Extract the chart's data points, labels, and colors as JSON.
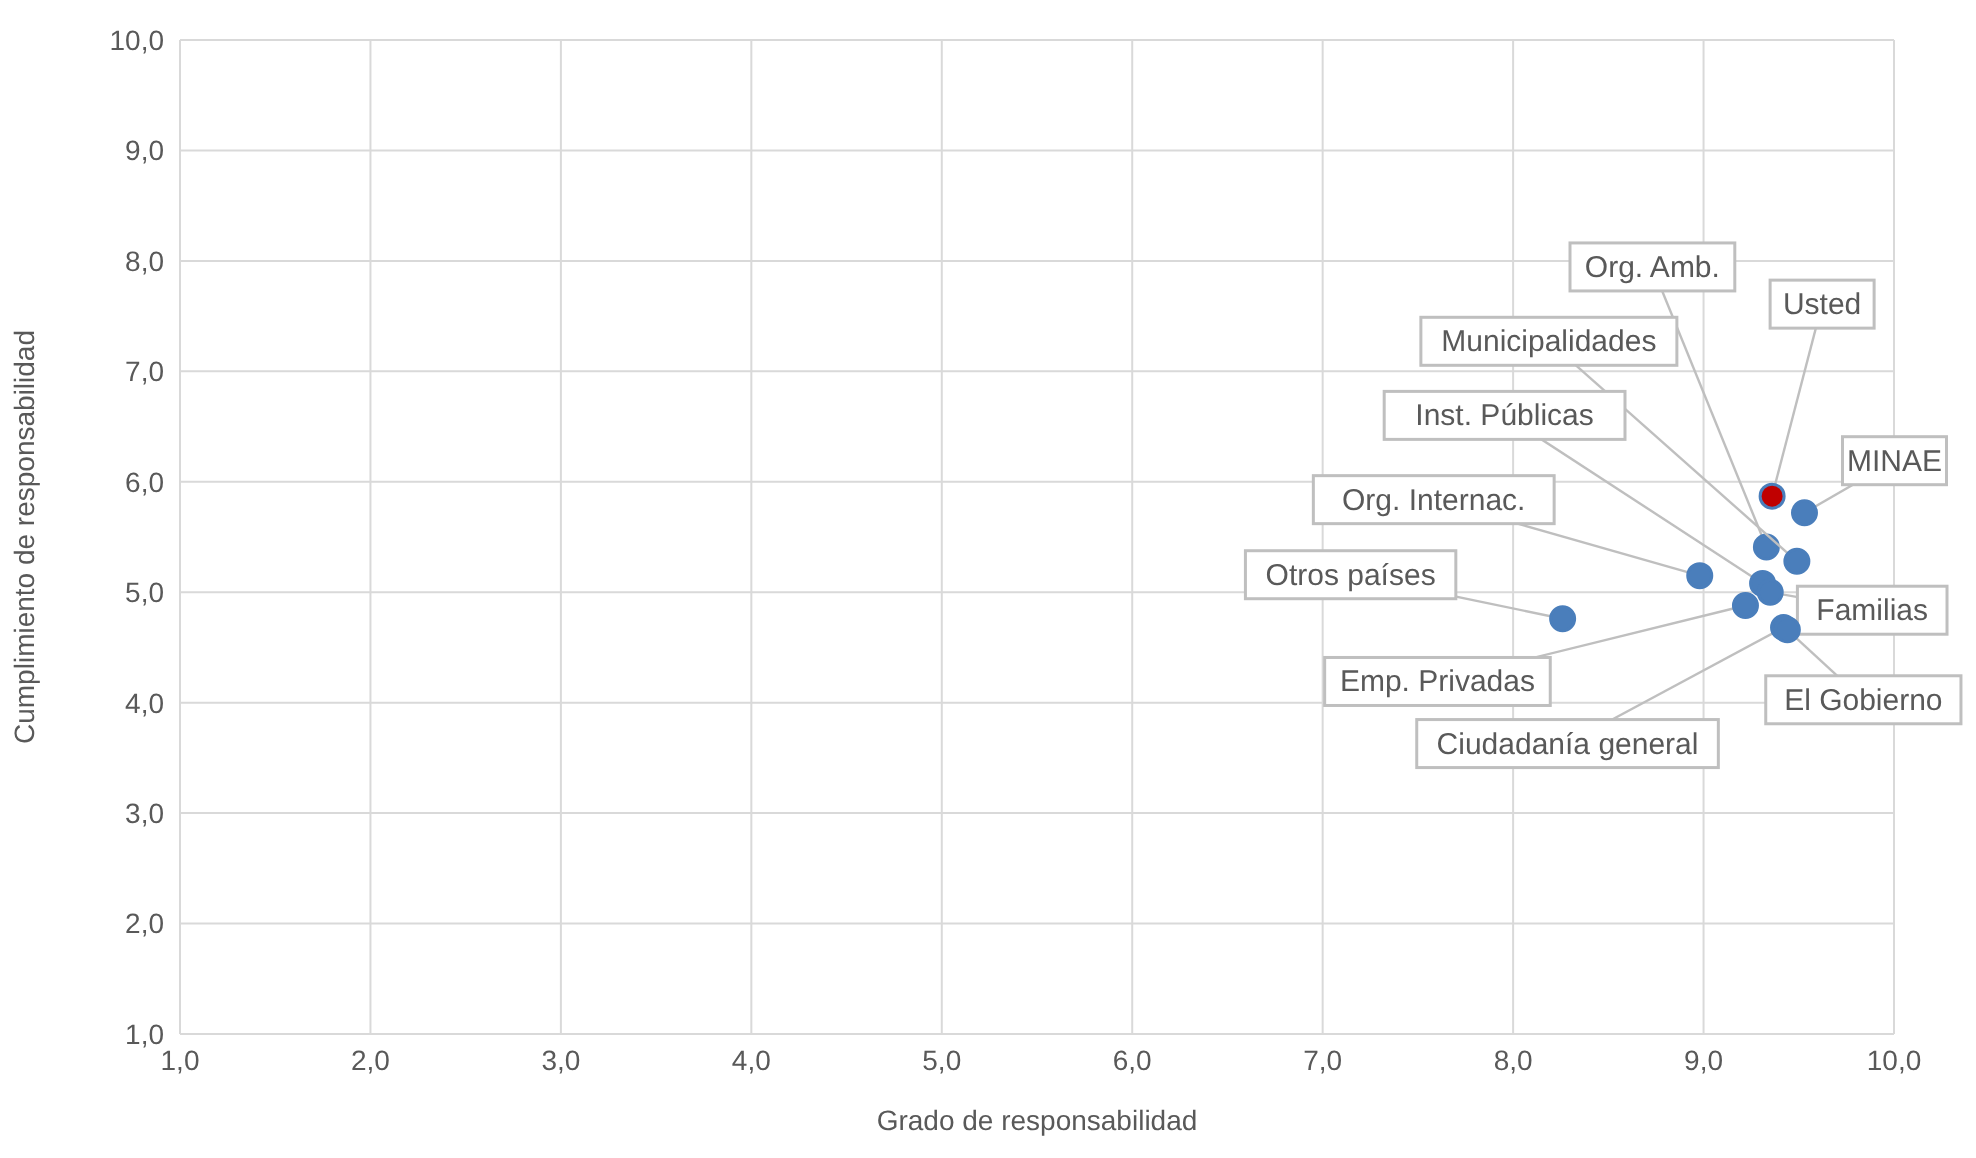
{
  "chart_data": {
    "type": "scatter",
    "xlabel": "Grado de responsabilidad",
    "ylabel": "Cumplimiento de responsabilidad",
    "xlim": [
      1,
      10
    ],
    "ylim": [
      1,
      10
    ],
    "xticks": [
      {
        "value": 1,
        "label": "1,0"
      },
      {
        "value": 2,
        "label": "2,0"
      },
      {
        "value": 3,
        "label": "3,0"
      },
      {
        "value": 4,
        "label": "4,0"
      },
      {
        "value": 5,
        "label": "5,0"
      },
      {
        "value": 6,
        "label": "6,0"
      },
      {
        "value": 7,
        "label": "7,0"
      },
      {
        "value": 8,
        "label": "8,0"
      },
      {
        "value": 9,
        "label": "9,0"
      },
      {
        "value": 10,
        "label": "10,0"
      }
    ],
    "yticks": [
      {
        "value": 1,
        "label": "1,0"
      },
      {
        "value": 2,
        "label": "2,0"
      },
      {
        "value": 3,
        "label": "3,0"
      },
      {
        "value": 4,
        "label": "4,0"
      },
      {
        "value": 5,
        "label": "5,0"
      },
      {
        "value": 6,
        "label": "6,0"
      },
      {
        "value": 7,
        "label": "7,0"
      },
      {
        "value": 8,
        "label": "8,0"
      },
      {
        "value": 9,
        "label": "9,0"
      },
      {
        "value": 10,
        "label": "10,0"
      }
    ],
    "grid": true,
    "marker": "circle",
    "series": [
      {
        "name": "Org. Amb.",
        "color": "#4a7ebb",
        "x": [
          9.33
        ],
        "values": [
          5.41
        ]
      },
      {
        "name": "Usted",
        "color": "#c00000",
        "x": [
          9.36
        ],
        "values": [
          5.87
        ]
      },
      {
        "name": "Municipalidades",
        "color": "#4a7ebb",
        "x": [
          9.49
        ],
        "values": [
          5.28
        ]
      },
      {
        "name": "MINAE",
        "color": "#4a7ebb",
        "x": [
          9.53
        ],
        "values": [
          5.72
        ]
      },
      {
        "name": "Inst. Públicas",
        "color": "#4a7ebb",
        "x": [
          9.31
        ],
        "values": [
          5.08
        ]
      },
      {
        "name": "Org. Internac.",
        "color": "#4a7ebb",
        "x": [
          8.98
        ],
        "values": [
          5.15
        ]
      },
      {
        "name": "Otros países",
        "color": "#4a7ebb",
        "x": [
          8.26
        ],
        "values": [
          4.76
        ]
      },
      {
        "name": "Familias",
        "color": "#4a7ebb",
        "x": [
          9.35
        ],
        "values": [
          5.0
        ]
      },
      {
        "name": "Emp. Privadas",
        "color": "#4a7ebb",
        "x": [
          9.22
        ],
        "values": [
          4.88
        ]
      },
      {
        "name": "Ciudadanía general",
        "color": "#4a7ebb",
        "x": [
          9.42
        ],
        "values": [
          4.68
        ]
      },
      {
        "name": "El Gobierno",
        "color": "#4a7ebb",
        "x": [
          9.44
        ],
        "values": [
          4.66
        ]
      }
    ]
  }
}
